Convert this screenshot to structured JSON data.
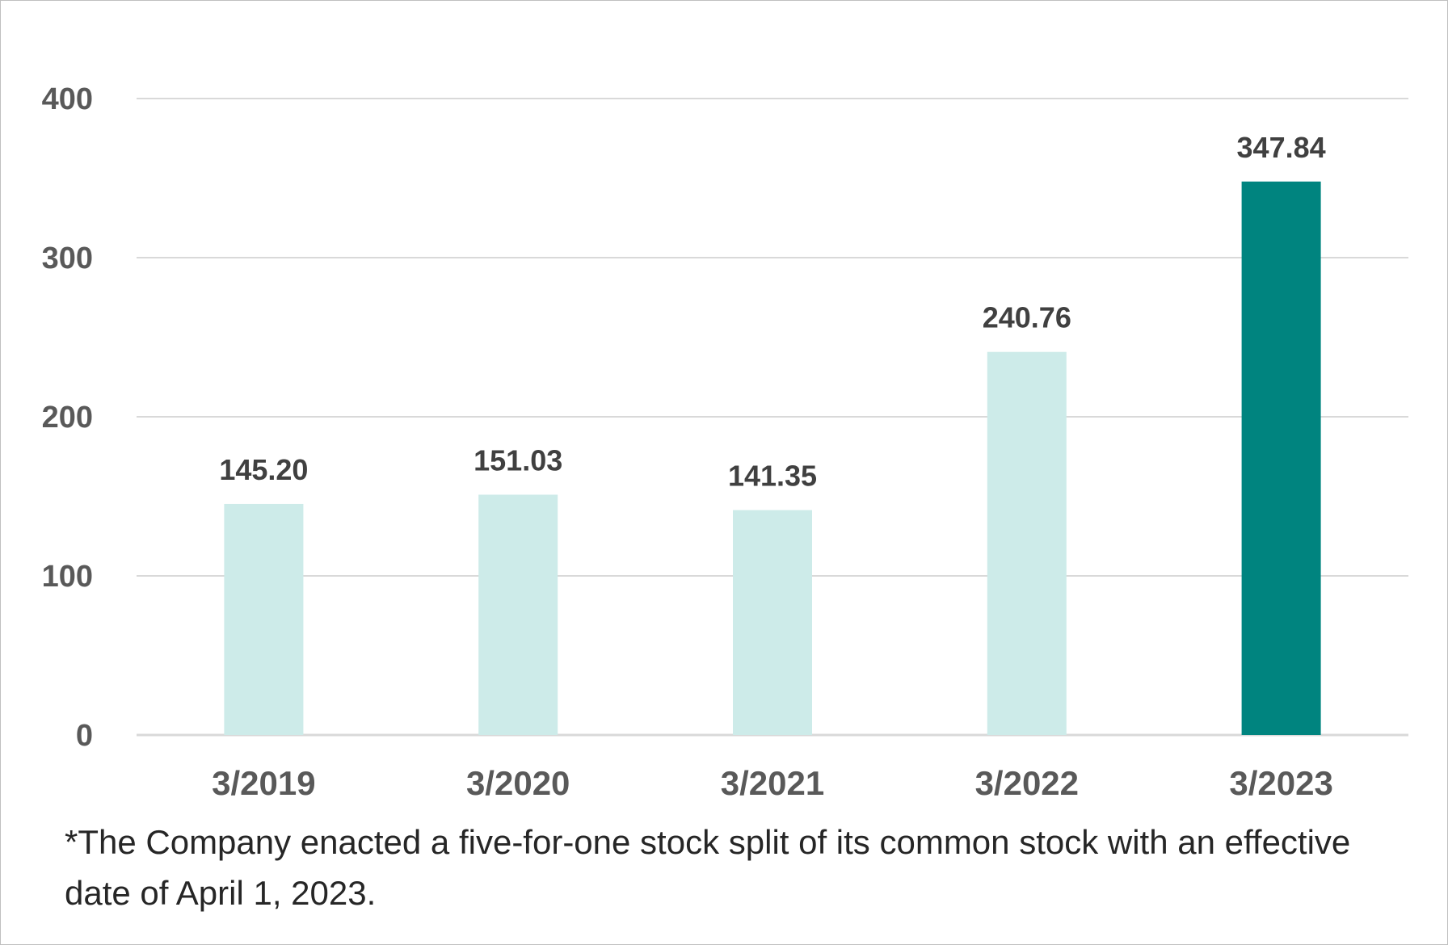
{
  "chart_data": {
    "type": "bar",
    "categories": [
      "3/2019",
      "3/2020",
      "3/2021",
      "3/2022",
      "3/2023"
    ],
    "values": [
      145.2,
      151.03,
      141.35,
      240.76,
      347.84
    ],
    "data_labels": [
      "145.20",
      "151.03",
      "141.35",
      "240.76",
      "347.84"
    ],
    "yticks": [
      "0",
      "100",
      "200",
      "300",
      "400"
    ],
    "ylim": [
      0,
      400
    ],
    "grid": true,
    "colors": {
      "bar": "#cdebe9",
      "highlight_bar": "#00847f",
      "grid": "#d9d9d9",
      "tick_text": "#595959",
      "label_text": "#404040"
    },
    "highlight_index": 4
  },
  "footnote": "*The Company enacted a five-for-one stock split of its common stock with an effective date of April 1, 2023."
}
